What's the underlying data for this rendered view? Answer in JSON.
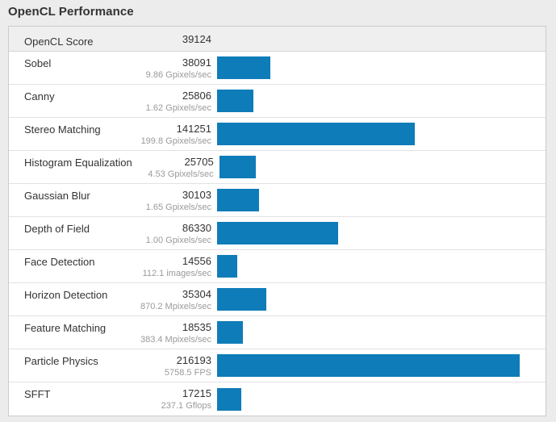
{
  "title": "OpenCL Performance",
  "table": {
    "header": {
      "label": "OpenCL Score",
      "score": "39124"
    },
    "rows": [
      {
        "label": "Sobel",
        "score": "38091",
        "rate": "9.86 Gpixels/sec"
      },
      {
        "label": "Canny",
        "score": "25806",
        "rate": "1.62 Gpixels/sec"
      },
      {
        "label": "Stereo Matching",
        "score": "141251",
        "rate": "199.8 Gpixels/sec"
      },
      {
        "label": "Histogram Equalization",
        "score": "25705",
        "rate": "4.53 Gpixels/sec"
      },
      {
        "label": "Gaussian Blur",
        "score": "30103",
        "rate": "1.65 Gpixels/sec"
      },
      {
        "label": "Depth of Field",
        "score": "86330",
        "rate": "1.00 Gpixels/sec"
      },
      {
        "label": "Face Detection",
        "score": "14556",
        "rate": "112.1 images/sec"
      },
      {
        "label": "Horizon Detection",
        "score": "35304",
        "rate": "870.2 Mpixels/sec"
      },
      {
        "label": "Feature Matching",
        "score": "18535",
        "rate": "383.4 Mpixels/sec"
      },
      {
        "label": "Particle Physics",
        "score": "216193",
        "rate": "5758.5 FPS"
      },
      {
        "label": "SFFT",
        "score": "17215",
        "rate": "237.1 Gflops"
      }
    ],
    "bar_color": "#0e7cb8"
  },
  "chart_data": {
    "type": "bar",
    "title": "OpenCL Performance",
    "overall_score": {
      "label": "OpenCL Score",
      "value": 39124
    },
    "categories": [
      "Sobel",
      "Canny",
      "Stereo Matching",
      "Histogram Equalization",
      "Gaussian Blur",
      "Depth of Field",
      "Face Detection",
      "Horizon Detection",
      "Feature Matching",
      "Particle Physics",
      "SFFT"
    ],
    "values": [
      38091,
      25806,
      141251,
      25705,
      30103,
      86330,
      14556,
      35304,
      18535,
      216193,
      17215
    ],
    "rate_labels": [
      "9.86 Gpixels/sec",
      "1.62 Gpixels/sec",
      "199.8 Gpixels/sec",
      "4.53 Gpixels/sec",
      "1.65 Gpixels/sec",
      "1.00 Gpixels/sec",
      "112.1 images/sec",
      "870.2 Mpixels/sec",
      "383.4 Mpixels/sec",
      "5758.5 FPS",
      "237.1 Gflops"
    ],
    "orientation": "horizontal",
    "xlim": [
      0,
      216193
    ],
    "grid": false,
    "legend": false,
    "bar_color": "#0e7cb8"
  }
}
